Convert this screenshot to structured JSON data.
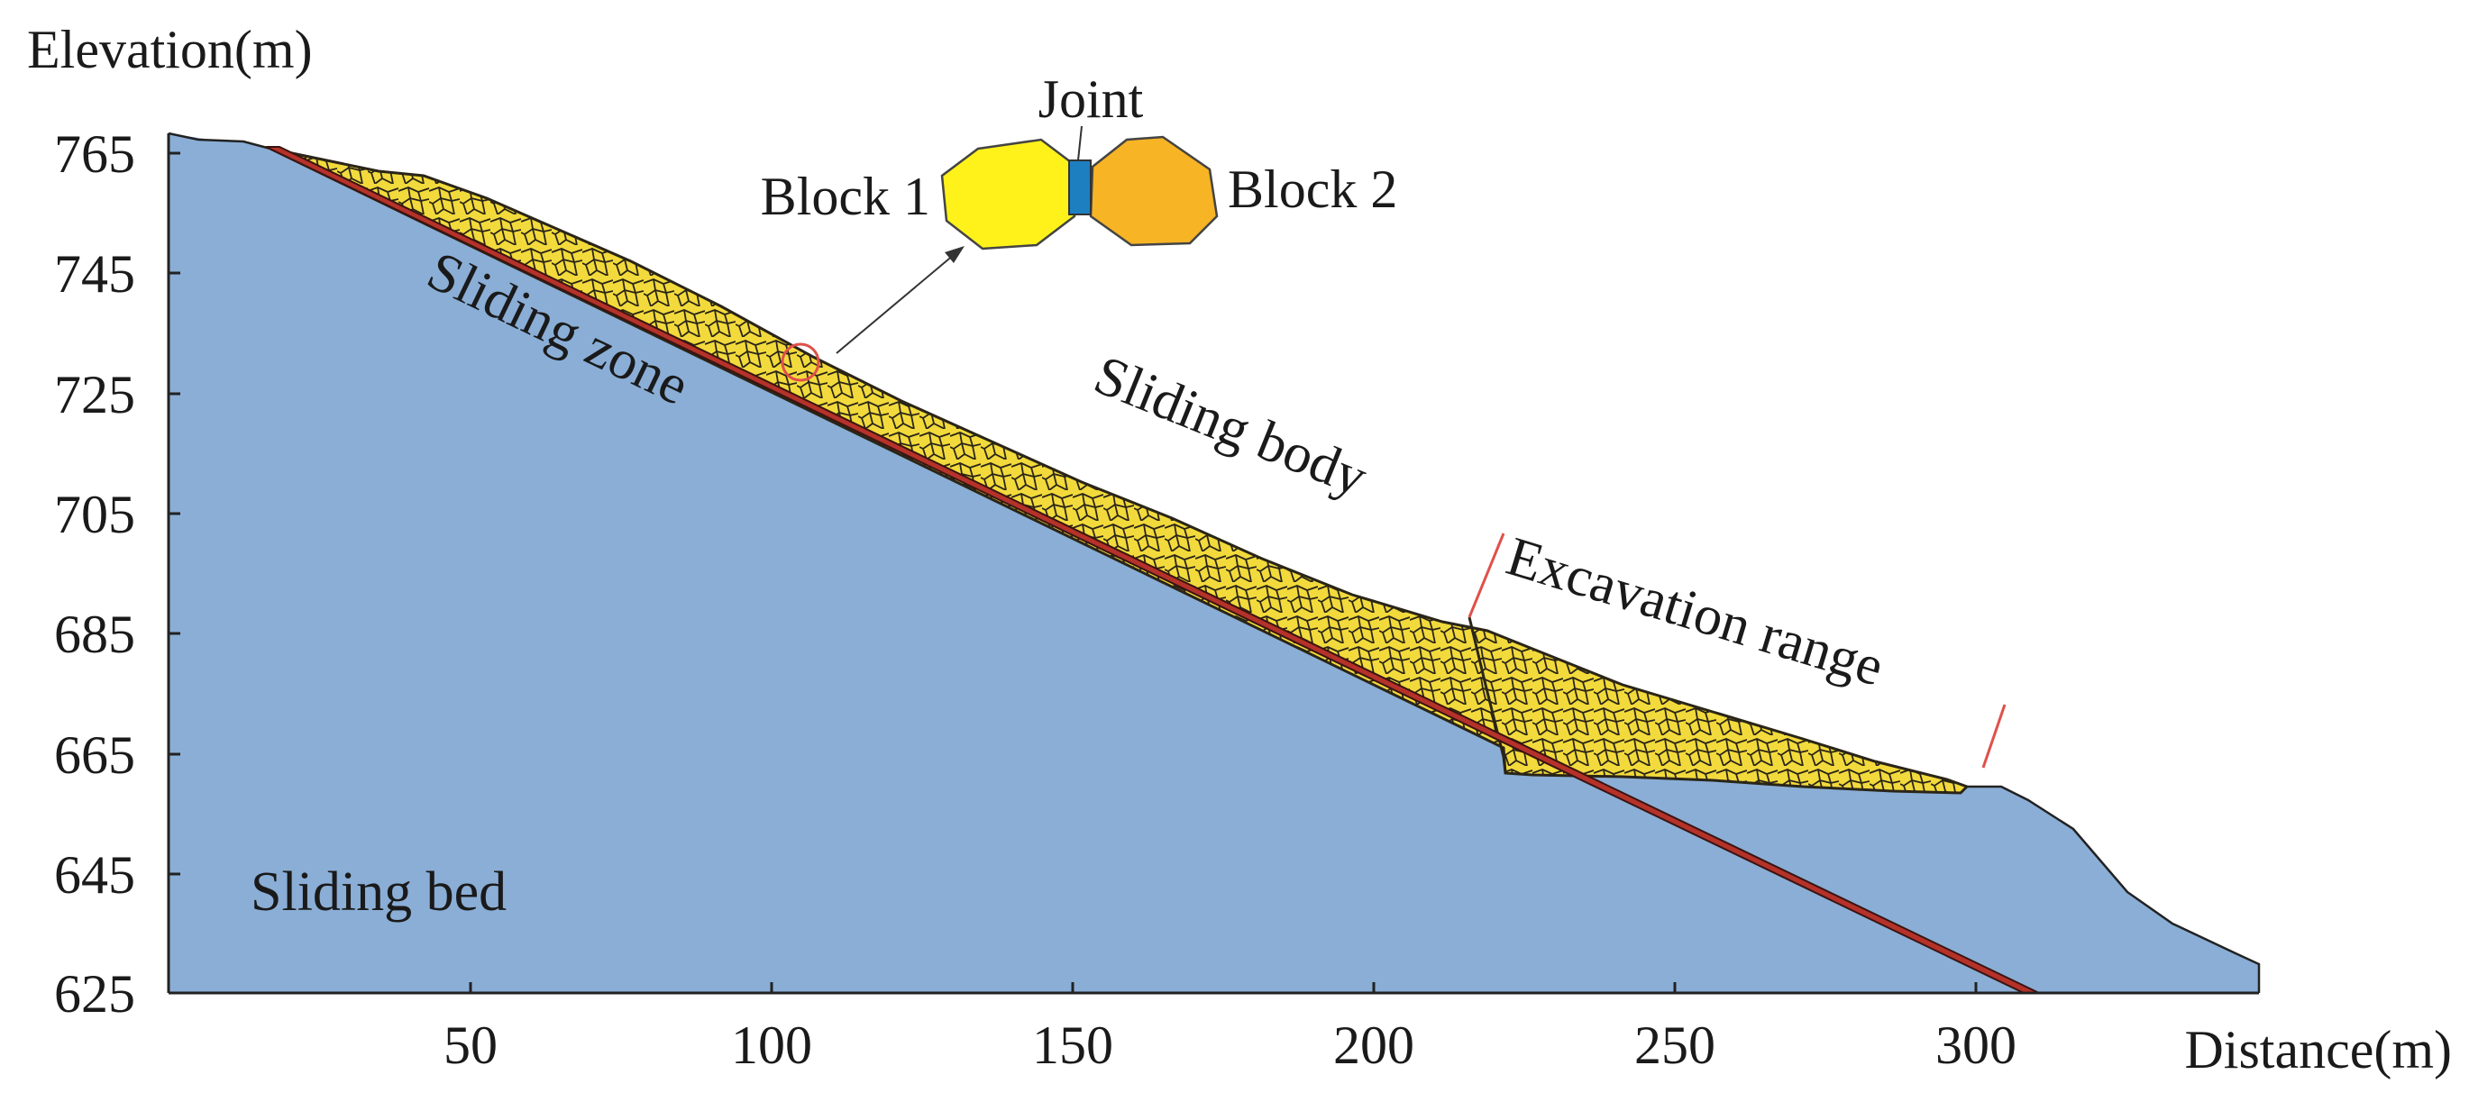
{
  "figure": {
    "y_axis_title": "Elevation(m)",
    "x_axis_title": "Distance(m)",
    "y_ticks": [
      "765",
      "745",
      "725",
      "705",
      "685",
      "665",
      "645",
      "625"
    ],
    "x_ticks": [
      "50",
      "100",
      "150",
      "200",
      "250",
      "300"
    ],
    "labels": {
      "sliding_zone": "Sliding zone",
      "sliding_body": "Sliding body",
      "excavation_range": "Excavation range",
      "sliding_bed": "Sliding bed"
    },
    "inset": {
      "joint": "Joint",
      "block1": "Block 1",
      "block2": "Block 2"
    },
    "colors": {
      "sliding_bed": "#8aaed6",
      "sliding_body": "#f2da3c",
      "sliding_zone": "#b5322a",
      "block1": "#fff21a",
      "block2": "#f7b425",
      "joint": "#1e7fc0",
      "guide_lines": "#e0504a"
    }
  }
}
